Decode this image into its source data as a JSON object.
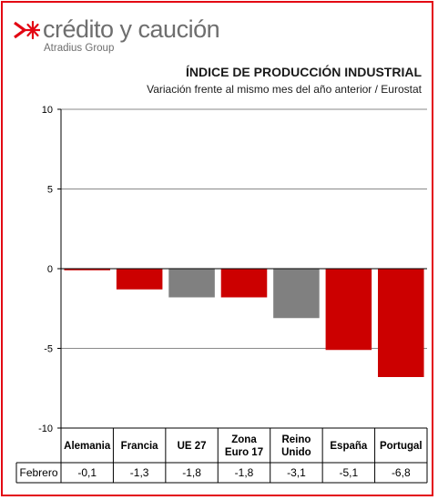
{
  "logo": {
    "name": "crédito y caución",
    "group": "Atradius Group"
  },
  "chart_data": {
    "type": "bar",
    "title": "ÍNDICE DE PRODUCCIÓN INDUSTRIAL",
    "subtitle": "Variación frente al mismo mes del año anterior / Eurostat",
    "categories": [
      [
        "Alemania"
      ],
      [
        "Francia"
      ],
      [
        "UE 27"
      ],
      [
        "Zona",
        "Euro 17"
      ],
      [
        "Reino",
        "Unido"
      ],
      [
        "España"
      ],
      [
        "Portugal"
      ]
    ],
    "series": [
      {
        "name": "Febrero",
        "values": [
          -0.1,
          -1.3,
          -1.8,
          -1.8,
          -3.1,
          -5.1,
          -6.8
        ]
      }
    ],
    "value_labels": [
      "-0,1",
      "-1,3",
      "-1,8",
      "-1,8",
      "-3,1",
      "-5,1",
      "-6,8"
    ],
    "bar_colors": [
      "#cc0000",
      "#cc0000",
      "#808080",
      "#cc0000",
      "#808080",
      "#cc0000",
      "#cc0000"
    ],
    "ylim": [
      -10,
      10
    ],
    "yticks": [
      10,
      5,
      0,
      -5,
      -10
    ],
    "ytick_labels": [
      "10",
      "5",
      "0",
      "-5",
      "-10"
    ],
    "grid": true,
    "legend": "data-table"
  },
  "colors": {
    "frame": "#e30613",
    "logo_mark": "#e30613",
    "logo_text": "#6e6e6e"
  }
}
